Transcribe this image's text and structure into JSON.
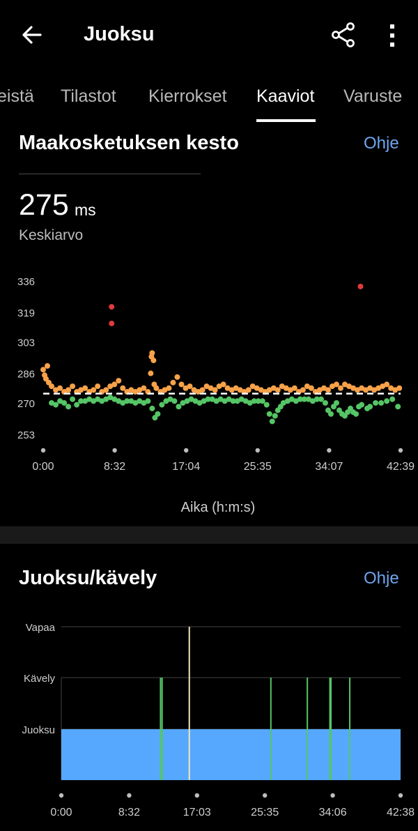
{
  "header": {
    "title": "Juoksu",
    "back_icon": "arrow-left-icon",
    "share_icon": "share-icon",
    "more_icon": "more-vertical-icon"
  },
  "tabs": [
    {
      "label": "eistä",
      "active": false
    },
    {
      "label": "Tilastot",
      "active": false
    },
    {
      "label": "Kierrokset",
      "active": false
    },
    {
      "label": "Kaaviot",
      "active": true
    },
    {
      "label": "Varuste",
      "active": false
    }
  ],
  "gct": {
    "title": "Maakosketuksen kesto",
    "help": "Ohje",
    "average_value": "275",
    "average_unit": "ms",
    "average_label": "Keskiarvo"
  },
  "runwalk": {
    "title": "Juoksu/kävely",
    "help": "Ohje"
  },
  "colors": {
    "accent_link": "#6ea6f0",
    "orange": "#f7a24a",
    "green": "#55c565",
    "red": "#e03b3b",
    "run_blue": "#56a8ff"
  },
  "chart_data": [
    {
      "type": "scatter",
      "title": "Maakosketuksen kesto",
      "xlabel": "Aika (h:m:s)",
      "ylabel": "",
      "x_ticks": [
        "0:00",
        "8:32",
        "17:04",
        "25:35",
        "34:07",
        "42:39"
      ],
      "y_ticks": [
        336,
        319,
        303,
        286,
        270,
        253
      ],
      "ylim": [
        250,
        340
      ],
      "xlim_seconds": [
        0,
        2559
      ],
      "average_line": 275,
      "series": [
        {
          "color": "orange",
          "points": [
            [
              0,
              288
            ],
            [
              10,
              285
            ],
            [
              20,
              283
            ],
            [
              30,
              290
            ],
            [
              40,
              281
            ],
            [
              60,
              279
            ],
            [
              90,
              277
            ],
            [
              120,
              278
            ],
            [
              150,
              276
            ],
            [
              180,
              277
            ],
            [
              210,
              279
            ],
            [
              240,
              276
            ],
            [
              270,
              277
            ],
            [
              300,
              278
            ],
            [
              330,
              276
            ],
            [
              360,
              277
            ],
            [
              390,
              279
            ],
            [
              420,
              276
            ],
            [
              450,
              277
            ],
            [
              480,
              279
            ],
            [
              510,
              280
            ],
            [
              540,
              282
            ],
            [
              570,
              278
            ],
            [
              600,
              276
            ],
            [
              630,
              277
            ],
            [
              660,
              276
            ],
            [
              690,
              277
            ],
            [
              720,
              278
            ],
            [
              750,
              276
            ],
            [
              770,
              286
            ],
            [
              775,
              295
            ],
            [
              780,
              297
            ],
            [
              790,
              293
            ],
            [
              795,
              280
            ],
            [
              810,
              278
            ],
            [
              840,
              276
            ],
            [
              870,
              277
            ],
            [
              900,
              278
            ],
            [
              930,
              281
            ],
            [
              960,
              284
            ],
            [
              990,
              280
            ],
            [
              1020,
              278
            ],
            [
              1050,
              279
            ],
            [
              1080,
              277
            ],
            [
              1110,
              276
            ],
            [
              1140,
              277
            ],
            [
              1170,
              279
            ],
            [
              1200,
              278
            ],
            [
              1230,
              277
            ],
            [
              1260,
              279
            ],
            [
              1290,
              280
            ],
            [
              1320,
              278
            ],
            [
              1350,
              277
            ],
            [
              1380,
              278
            ],
            [
              1410,
              277
            ],
            [
              1440,
              276
            ],
            [
              1470,
              277
            ],
            [
              1500,
              279
            ],
            [
              1530,
              278
            ],
            [
              1560,
              277
            ],
            [
              1590,
              276
            ],
            [
              1620,
              277
            ],
            [
              1650,
              278
            ],
            [
              1680,
              277
            ],
            [
              1710,
              279
            ],
            [
              1740,
              278
            ],
            [
              1770,
              277
            ],
            [
              1800,
              278
            ],
            [
              1830,
              276
            ],
            [
              1860,
              277
            ],
            [
              1890,
              279
            ],
            [
              1920,
              278
            ],
            [
              1950,
              276
            ],
            [
              1980,
              277
            ],
            [
              2010,
              278
            ],
            [
              2040,
              277
            ],
            [
              2070,
              279
            ],
            [
              2100,
              280
            ],
            [
              2130,
              278
            ],
            [
              2160,
              280
            ],
            [
              2190,
              279
            ],
            [
              2220,
              278
            ],
            [
              2250,
              277
            ],
            [
              2280,
              278
            ],
            [
              2310,
              277
            ],
            [
              2340,
              278
            ],
            [
              2370,
              277
            ],
            [
              2400,
              278
            ],
            [
              2430,
              279
            ],
            [
              2460,
              280
            ],
            [
              2490,
              278
            ],
            [
              2520,
              277
            ],
            [
              2550,
              278
            ]
          ]
        },
        {
          "color": "green",
          "points": [
            [
              60,
              270
            ],
            [
              90,
              269
            ],
            [
              120,
              271
            ],
            [
              150,
              270
            ],
            [
              180,
              268
            ],
            [
              210,
              272
            ],
            [
              240,
              269
            ],
            [
              270,
              271
            ],
            [
              300,
              271
            ],
            [
              330,
              272
            ],
            [
              360,
              271
            ],
            [
              390,
              272
            ],
            [
              420,
              271
            ],
            [
              450,
              272
            ],
            [
              480,
              273
            ],
            [
              510,
              272
            ],
            [
              540,
              271
            ],
            [
              570,
              270
            ],
            [
              600,
              271
            ],
            [
              630,
              271
            ],
            [
              660,
              270
            ],
            [
              690,
              271
            ],
            [
              720,
              270
            ],
            [
              750,
              271
            ],
            [
              780,
              267
            ],
            [
              800,
              262
            ],
            [
              820,
              264
            ],
            [
              850,
              269
            ],
            [
              880,
              271
            ],
            [
              910,
              272
            ],
            [
              940,
              271
            ],
            [
              970,
              268
            ],
            [
              1000,
              270
            ],
            [
              1030,
              271
            ],
            [
              1060,
              272
            ],
            [
              1090,
              271
            ],
            [
              1120,
              270
            ],
            [
              1150,
              271
            ],
            [
              1180,
              272
            ],
            [
              1210,
              272
            ],
            [
              1240,
              271
            ],
            [
              1270,
              272
            ],
            [
              1300,
              271
            ],
            [
              1330,
              272
            ],
            [
              1360,
              271
            ],
            [
              1390,
              271
            ],
            [
              1420,
              272
            ],
            [
              1450,
              271
            ],
            [
              1480,
              270
            ],
            [
              1510,
              271
            ],
            [
              1540,
              271
            ],
            [
              1570,
              271
            ],
            [
              1600,
              269
            ],
            [
              1620,
              264
            ],
            [
              1640,
              260
            ],
            [
              1660,
              263
            ],
            [
              1680,
              266
            ],
            [
              1700,
              268
            ],
            [
              1720,
              270
            ],
            [
              1750,
              271
            ],
            [
              1780,
              272
            ],
            [
              1810,
              271
            ],
            [
              1840,
              272
            ],
            [
              1870,
              272
            ],
            [
              1900,
              272
            ],
            [
              1930,
              271
            ],
            [
              1960,
              272
            ],
            [
              1990,
              272
            ],
            [
              2020,
              270
            ],
            [
              2040,
              266
            ],
            [
              2060,
              264
            ],
            [
              2080,
              268
            ],
            [
              2100,
              270
            ],
            [
              2120,
              266
            ],
            [
              2140,
              264
            ],
            [
              2160,
              263
            ],
            [
              2180,
              265
            ],
            [
              2200,
              267
            ],
            [
              2220,
              265
            ],
            [
              2240,
              264
            ],
            [
              2260,
              268
            ],
            [
              2280,
              269
            ],
            [
              2320,
              267
            ],
            [
              2340,
              268
            ],
            [
              2380,
              270
            ],
            [
              2420,
              270
            ],
            [
              2460,
              271
            ],
            [
              2500,
              272
            ],
            [
              2540,
              268
            ]
          ]
        },
        {
          "color": "red",
          "points": [
            [
              490,
              322
            ],
            [
              490,
              313
            ],
            [
              2272,
              333
            ]
          ]
        }
      ]
    },
    {
      "type": "bar",
      "title": "Juoksu/kävely",
      "categories": [
        "Vapaa",
        "Kävely",
        "Juoksu"
      ],
      "x_ticks": [
        "0:00",
        "8:32",
        "17:03",
        "25:35",
        "34:06",
        "42:38"
      ],
      "xlim_seconds": [
        0,
        2558
      ],
      "base_state": "Juoksu",
      "events": [
        {
          "t": 748,
          "state": "Kävely"
        },
        {
          "t": 760,
          "state": "Kävely"
        },
        {
          "t": 965,
          "state": "Vapaa"
        },
        {
          "t": 1580,
          "state": "Kävely"
        },
        {
          "t": 1855,
          "state": "Kävely"
        },
        {
          "t": 2025,
          "state": "Kävely"
        },
        {
          "t": 2033,
          "state": "Kävely"
        },
        {
          "t": 2175,
          "state": "Kävely"
        }
      ]
    }
  ]
}
